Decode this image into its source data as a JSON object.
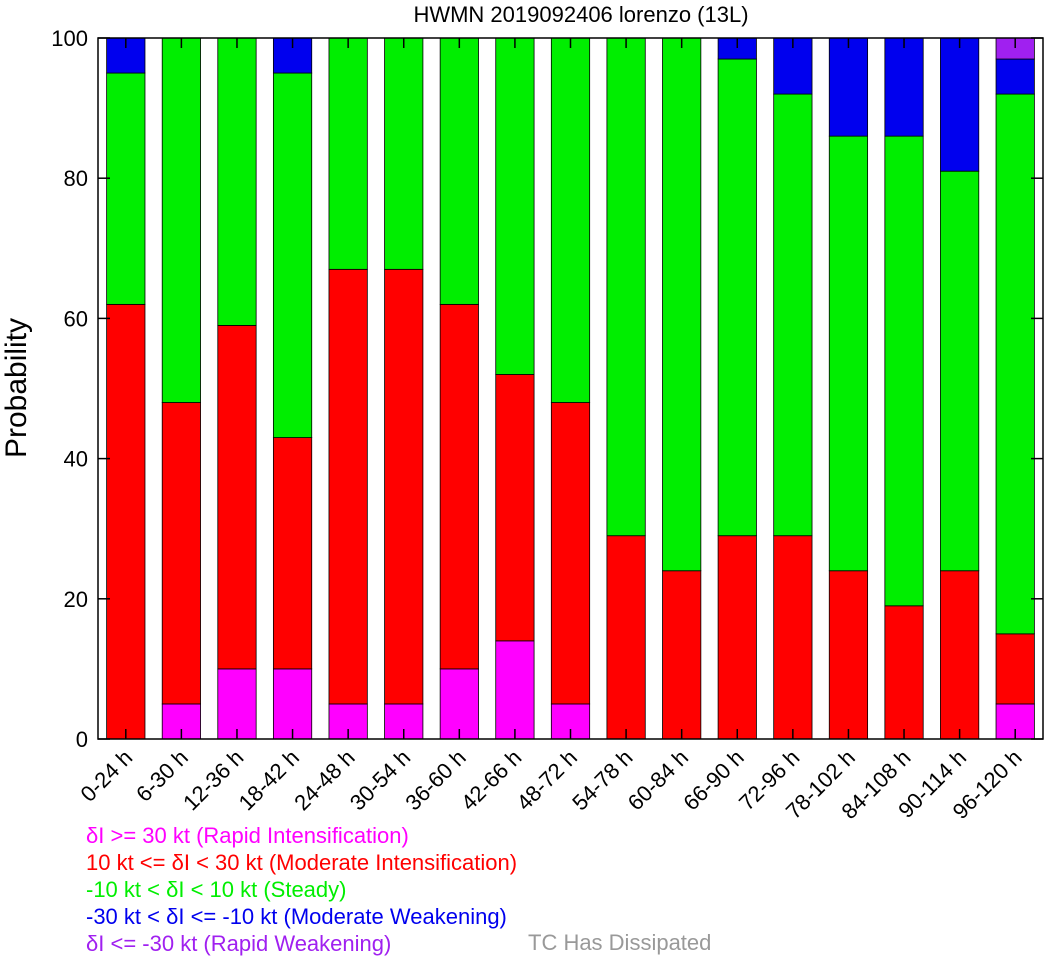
{
  "chart_data": {
    "type": "bar",
    "stacked": true,
    "title": "HWMN 2019092406 lorenzo (13L)",
    "xlabel": "",
    "ylabel": "Probability",
    "ylim": [
      0,
      100
    ],
    "yticks": [
      0,
      20,
      40,
      60,
      80,
      100
    ],
    "grid": false,
    "categories": [
      "0-24 h",
      "6-30 h",
      "12-36 h",
      "18-42 h",
      "24-48 h",
      "30-54 h",
      "36-60 h",
      "42-66 h",
      "48-72 h",
      "54-78 h",
      "60-84 h",
      "66-90 h",
      "72-96 h",
      "78-102 h",
      "84-108 h",
      "90-114 h",
      "96-120 h"
    ],
    "series": [
      {
        "name": "δI >= 30 kt (Rapid Intensification)",
        "color": "#ff00ff",
        "values": [
          0,
          5,
          10,
          10,
          5,
          5,
          10,
          14,
          5,
          0,
          0,
          0,
          0,
          0,
          0,
          0,
          5
        ]
      },
      {
        "name": "10 kt <= δI < 30 kt (Moderate Intensification)",
        "color": "#ff0000",
        "values": [
          62,
          43,
          49,
          33,
          62,
          62,
          52,
          38,
          43,
          29,
          24,
          29,
          29,
          24,
          19,
          24,
          10
        ]
      },
      {
        "name": "-10 kt < δI < 10 kt (Steady)",
        "color": "#00ee00",
        "values": [
          33,
          52,
          41,
          52,
          33,
          33,
          38,
          48,
          52,
          71,
          76,
          68,
          63,
          62,
          67,
          57,
          77
        ]
      },
      {
        "name": "-30 kt < δI <= -10 kt (Moderate Weakening)",
        "color": "#0000ee",
        "values": [
          5,
          0,
          0,
          5,
          0,
          0,
          0,
          0,
          0,
          0,
          0,
          3,
          8,
          14,
          14,
          19,
          5
        ]
      },
      {
        "name": "δI <= -30 kt (Rapid Weakening)",
        "color": "#a020f0",
        "values": [
          0,
          0,
          0,
          0,
          0,
          0,
          0,
          0,
          0,
          0,
          0,
          0,
          0,
          0,
          0,
          0,
          3
        ]
      }
    ],
    "extra_legend": {
      "label": "TC Has Dissipated",
      "color": "#999999"
    }
  }
}
